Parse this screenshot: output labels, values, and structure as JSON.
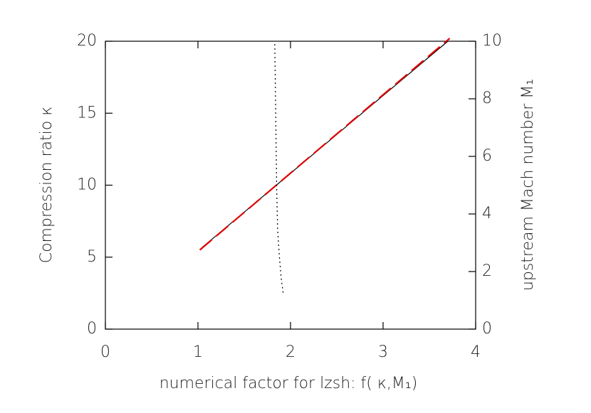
{
  "chart_data": {
    "type": "line",
    "xlabel": "numerical factor for lzsh: f( κ,M₁)",
    "ylabel": "Compression ratio  κ",
    "y2label": "upstream Mach number M₁",
    "xlim": [
      0,
      4
    ],
    "xticks": [
      0,
      1,
      2,
      3,
      4
    ],
    "ylim": [
      0,
      20
    ],
    "yticks": [
      0,
      5,
      10,
      15,
      20
    ],
    "y2lim": [
      0,
      10
    ],
    "y2ticks": [
      0,
      2,
      4,
      6,
      8,
      10
    ],
    "series": [
      {
        "color": "#000000",
        "dash": "solid",
        "x": [
          1.05,
          3.7
        ],
        "values": [
          5.7,
          20
        ]
      },
      {
        "color": "#dd0000",
        "dash": "dashed",
        "x": [
          1.02,
          3.72
        ],
        "values": [
          5.5,
          20.2
        ]
      },
      {
        "color": "#000000",
        "dash": "dotted",
        "x": [
          1.83,
          1.84,
          1.85,
          1.86,
          1.88,
          1.9,
          1.92
        ],
        "values": [
          19.8,
          15,
          10,
          7,
          5,
          3.5,
          2.5
        ]
      }
    ]
  }
}
